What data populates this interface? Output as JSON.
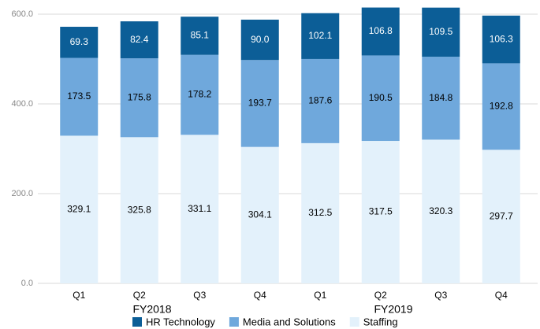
{
  "chart_data": {
    "type": "stacked_bar",
    "categories": [
      "Q1",
      "Q2",
      "Q3",
      "Q4",
      "Q1",
      "Q2",
      "Q3",
      "Q4"
    ],
    "groups": [
      {
        "label": "FY2018",
        "size": 4
      },
      {
        "label": "FY2019",
        "size": 4
      }
    ],
    "series": [
      {
        "name": "HR Technology",
        "color": "#0c5e97",
        "label_color": "#ffffff",
        "values": [
          69.3,
          82.4,
          85.1,
          90,
          102.1,
          106.8,
          109.5,
          106.3
        ],
        "value_labels": [
          "69.3",
          "82.4",
          "85.1",
          "90.0",
          "102.1",
          "106.8",
          "109.5",
          "106.3"
        ]
      },
      {
        "name": "Media and Solutions",
        "color": "#6fa8dc",
        "label_color": "#000000",
        "values": [
          173.5,
          175.8,
          178.2,
          193.7,
          187.6,
          190.5,
          184.8,
          192.8
        ],
        "value_labels": [
          "173.5",
          "175.8",
          "178.2",
          "193.7",
          "187.6",
          "190.5",
          "184.8",
          "192.8"
        ]
      },
      {
        "name": "Staffing",
        "color": "#e3f1fb",
        "label_color": "#000000",
        "values": [
          329.1,
          325.8,
          331.1,
          304.1,
          312.5,
          317.5,
          320.3,
          297.7
        ],
        "value_labels": [
          "329.1",
          "325.8",
          "331.1",
          "304.1",
          "312.5",
          "317.5",
          "320.3",
          "297.7"
        ]
      }
    ],
    "ylim": [
      0,
      600
    ],
    "yticks": [
      {
        "value": 0,
        "label": "0.0"
      },
      {
        "value": 200,
        "label": "200.0"
      },
      {
        "value": 400,
        "label": "400.0"
      },
      {
        "value": 600,
        "label": "600.0"
      }
    ],
    "grid": true,
    "legend": "bottom"
  }
}
